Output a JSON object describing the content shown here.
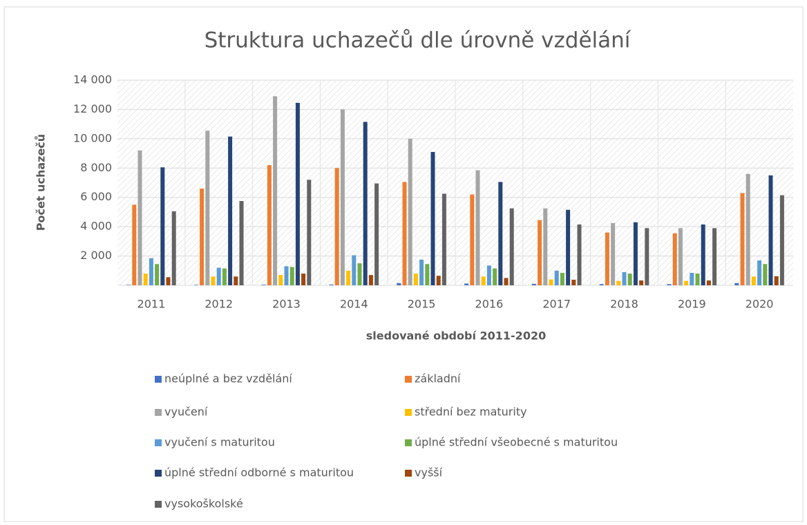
{
  "chart_data": {
    "type": "bar",
    "title": "Struktura uchazečů dle úrovně vzdělání",
    "x_label": "sledované období 2011-2020",
    "y_label": "Počet uchazečů",
    "categories": [
      "2011",
      "2012",
      "2013",
      "2014",
      "2015",
      "2016",
      "2017",
      "2018",
      "2019",
      "2020"
    ],
    "series": [
      {
        "name": "neúplné a bez vzdělání",
        "color": "#4472c4",
        "values": [
          30,
          30,
          40,
          50,
          150,
          120,
          100,
          80,
          80,
          150
        ]
      },
      {
        "name": "základní",
        "color": "#ed7d31",
        "values": [
          5500,
          6600,
          8200,
          8000,
          7050,
          6200,
          4450,
          3600,
          3550,
          6300
        ]
      },
      {
        "name": "vyučení",
        "color": "#a5a5a5",
        "values": [
          9200,
          10550,
          12900,
          12000,
          10000,
          7850,
          5250,
          4250,
          3900,
          7600
        ]
      },
      {
        "name": "střední bez maturity",
        "color": "#ffc000",
        "values": [
          800,
          600,
          700,
          1000,
          800,
          600,
          400,
          300,
          300,
          600
        ]
      },
      {
        "name": "vyučení s maturitou",
        "color": "#5b9bd5",
        "values": [
          1850,
          1200,
          1300,
          2050,
          1750,
          1350,
          1000,
          900,
          850,
          1700
        ]
      },
      {
        "name": "úplné střední všeobecné s maturitou",
        "color": "#70ad47",
        "values": [
          1450,
          1150,
          1250,
          1500,
          1450,
          1150,
          850,
          800,
          800,
          1450
        ]
      },
      {
        "name": "úplné střední odborné s maturitou",
        "color": "#264478",
        "values": [
          8050,
          10150,
          12450,
          11150,
          9100,
          7050,
          5150,
          4300,
          4150,
          7500
        ]
      },
      {
        "name": "vyšší",
        "color": "#9e480e",
        "values": [
          550,
          600,
          800,
          700,
          650,
          500,
          380,
          330,
          330,
          620
        ]
      },
      {
        "name": "vysokoškolské",
        "color": "#636363",
        "values": [
          5050,
          5750,
          7200,
          6950,
          6250,
          5250,
          4150,
          3900,
          3900,
          6150
        ]
      }
    ],
    "ylim": [
      0,
      14000
    ],
    "yticks": [
      {
        "value": 2000,
        "label": "2 000"
      },
      {
        "value": 4000,
        "label": "4 000"
      },
      {
        "value": 6000,
        "label": "6 000"
      },
      {
        "value": 8000,
        "label": "8 000"
      },
      {
        "value": 10000,
        "label": "10 000"
      },
      {
        "value": 12000,
        "label": "12 000"
      },
      {
        "value": 14000,
        "label": "14 000"
      }
    ],
    "grid": true,
    "legend": "bottom"
  }
}
